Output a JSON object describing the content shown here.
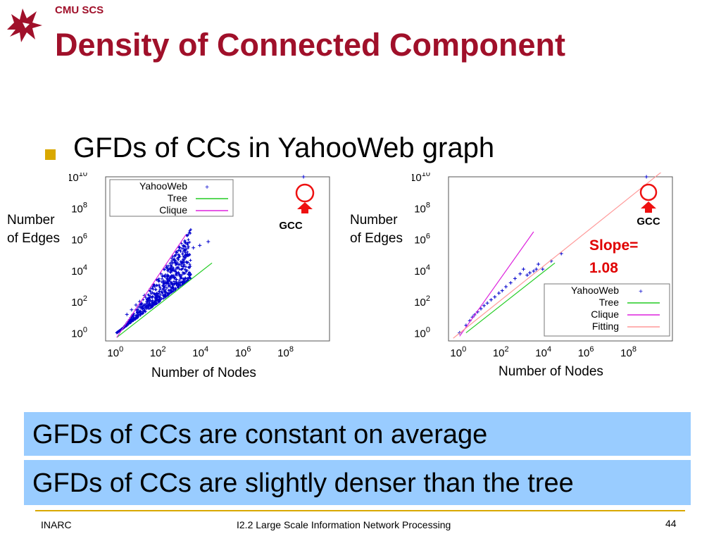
{
  "header": {
    "org": "CMU SCS",
    "title": "Density of Connected Component"
  },
  "bullet": {
    "text": "GFDs of CCs in YahooWeb graph"
  },
  "colors": {
    "title": "#a0102a",
    "bullet": "#d9a800",
    "banner": "#99ccff",
    "slope": "#e00000"
  },
  "chart_data": [
    {
      "type": "scatter",
      "xlabel": "Number of Nodes",
      "ylabel": "Number of Edges",
      "x_scale": "log",
      "y_scale": "log",
      "xlim": [
        0.3,
        10000000000.0
      ],
      "ylim": [
        0.3,
        10000000000.0
      ],
      "x_ticks": [
        {
          "b": "10",
          "e": "0"
        },
        {
          "b": "10",
          "e": "2"
        },
        {
          "b": "10",
          "e": "4"
        },
        {
          "b": "10",
          "e": "6"
        },
        {
          "b": "10",
          "e": "8"
        }
      ],
      "y_ticks": [
        {
          "b": "10",
          "e": "0"
        },
        {
          "b": "10",
          "e": "2"
        },
        {
          "b": "10",
          "e": "4"
        },
        {
          "b": "10",
          "e": "6"
        },
        {
          "b": "10",
          "e": "8"
        },
        {
          "b": "10",
          "e": "10"
        }
      ],
      "legend": {
        "placement": "top-left",
        "entries": [
          "YahooWeb",
          "Tree",
          "Clique"
        ]
      },
      "series": [
        {
          "name": "YahooWeb",
          "color": "#0000cc",
          "marker": "plus",
          "cloud": {
            "x_range": [
              1,
              3000
            ],
            "y_min_ratio": 1.0,
            "y_max_exp": 2.0,
            "count": 700
          },
          "points": [
            [
              3,
              15
            ],
            [
              5,
              30
            ],
            [
              8,
              60
            ],
            [
              12,
              100
            ],
            [
              20,
              250
            ],
            [
              40,
              700
            ],
            [
              120,
              6000
            ],
            [
              600,
              100000
            ],
            [
              1500,
              180000
            ],
            [
              4000,
              280000
            ],
            [
              8000,
              400000
            ],
            [
              20000,
              700000
            ],
            [
              600000000,
              10000000000
            ]
          ]
        },
        {
          "name": "Tree",
          "color": "#22cc22",
          "line": [
            [
              1,
              0.5
            ],
            [
              30000,
              30000
            ]
          ]
        },
        {
          "name": "Clique",
          "color": "#dd22dd",
          "line": [
            [
              1,
              0.5
            ],
            [
              1800,
              2000000
            ]
          ]
        }
      ],
      "annotations": [
        {
          "text": "GCC",
          "target": [
            600000000,
            10000000000
          ]
        }
      ]
    },
    {
      "type": "scatter",
      "xlabel": "Number of Nodes",
      "ylabel": "Number of Edges",
      "x_scale": "log",
      "y_scale": "log",
      "xlim": [
        0.3,
        10000000000.0
      ],
      "ylim": [
        0.3,
        10000000000.0
      ],
      "x_ticks": [
        {
          "b": "10",
          "e": "0"
        },
        {
          "b": "10",
          "e": "2"
        },
        {
          "b": "10",
          "e": "4"
        },
        {
          "b": "10",
          "e": "6"
        },
        {
          "b": "10",
          "e": "8"
        }
      ],
      "y_ticks": [
        {
          "b": "10",
          "e": "0"
        },
        {
          "b": "10",
          "e": "2"
        },
        {
          "b": "10",
          "e": "4"
        },
        {
          "b": "10",
          "e": "6"
        },
        {
          "b": "10",
          "e": "8"
        },
        {
          "b": "10",
          "e": "10"
        }
      ],
      "legend": {
        "placement": "bottom-right",
        "entries": [
          "YahooWeb",
          "Tree",
          "Clique",
          "Fitting"
        ]
      },
      "series": [
        {
          "name": "YahooWeb",
          "color": "#0000cc",
          "marker": "plus",
          "points": [
            [
              1,
              1
            ],
            [
              2,
              3
            ],
            [
              3,
              6
            ],
            [
              4,
              10
            ],
            [
              5,
              14
            ],
            [
              7,
              22
            ],
            [
              10,
              35
            ],
            [
              14,
              55
            ],
            [
              20,
              80
            ],
            [
              30,
              130
            ],
            [
              45,
              200
            ],
            [
              70,
              350
            ],
            [
              100,
              500
            ],
            [
              150,
              900
            ],
            [
              250,
              1600
            ],
            [
              400,
              3000
            ],
            [
              700,
              6000
            ],
            [
              1000,
              12000
            ],
            [
              1500,
              5000
            ],
            [
              2000,
              7000
            ],
            [
              3000,
              9000
            ],
            [
              4000,
              12000
            ],
            [
              5000,
              25000
            ],
            [
              8000,
              12000
            ],
            [
              20000,
              40000
            ],
            [
              60000,
              120000
            ],
            [
              600000000,
              10000000000
            ]
          ]
        },
        {
          "name": "Tree",
          "color": "#22cc22",
          "line": [
            [
              2,
              1
            ],
            [
              30000,
              30000
            ]
          ]
        },
        {
          "name": "Clique",
          "color": "#dd22dd",
          "line": [
            [
              1,
              0.6
            ],
            [
              3000,
              3000000
            ]
          ]
        },
        {
          "name": "Fitting",
          "color": "#ff9999",
          "line": [
            [
              0.5,
              0.45
            ],
            [
              3000000000,
              20000000000
            ]
          ]
        }
      ],
      "annotations": [
        {
          "text": "GCC",
          "target": [
            600000000,
            10000000000
          ]
        },
        {
          "text": "Slope=\n1.08"
        }
      ]
    }
  ],
  "plot_labels": {
    "left": {
      "y_line1": "Number",
      "y_line2": "of Edges",
      "x": "Number of Nodes",
      "gcc": "GCC"
    },
    "right": {
      "y_line1": "Number",
      "y_line2": "of Edges",
      "x": "Number of Nodes",
      "gcc": "GCC",
      "slope_line1": "Slope=",
      "slope_line2": "1.08"
    }
  },
  "banners": {
    "first": "GFDs of CCs are constant on average",
    "second": "GFDs of CCs are slightly denser than the tree"
  },
  "footer": {
    "left": "INARC",
    "center": "I2.2 Large Scale Information Network Processing",
    "page": "44"
  }
}
